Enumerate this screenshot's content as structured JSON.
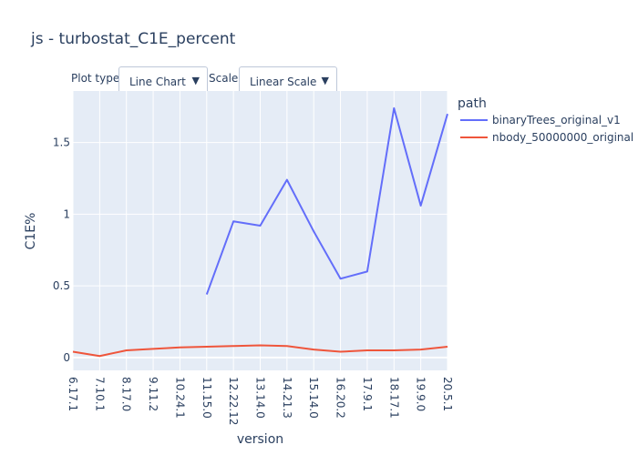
{
  "title": "js - turbostat_C1E_percent",
  "controls": {
    "plot_type_label": "Plot type:",
    "plot_type_value": "Line Chart",
    "scale_label": "Scale:",
    "scale_value": "Linear Scale",
    "arrow_glyph": "▼"
  },
  "legend": {
    "title": "path"
  },
  "colors": {
    "plot_bg": "#e5ecf6",
    "grid": "#ffffff",
    "text": "#2a3f5f"
  },
  "chart_data": {
    "type": "line",
    "title": "js - turbostat_C1E_percent",
    "xlabel": "version",
    "ylabel": "C1E%",
    "categories": [
      "6.17.1",
      "7.10.1",
      "8.17.0",
      "9.11.2",
      "10.24.1",
      "11.15.0",
      "12.22.12",
      "13.14.0",
      "14.21.3",
      "15.14.0",
      "16.20.2",
      "17.9.1",
      "18.17.1",
      "19.9.0",
      "20.5.1"
    ],
    "ylim": [
      -0.09,
      1.86
    ],
    "yticks": [
      0,
      0.5,
      1,
      1.5
    ],
    "ytick_labels": [
      "0",
      "0.5",
      "1",
      "1.5"
    ],
    "grid": true,
    "legend_position": "top-right",
    "series": [
      {
        "name": "binaryTrees_original_v1",
        "color": "#636efa",
        "values": [
          null,
          null,
          null,
          null,
          null,
          0.44,
          0.95,
          0.92,
          1.24,
          0.88,
          0.55,
          0.6,
          1.74,
          1.06,
          1.7
        ]
      },
      {
        "name": "nbody_50000000_original",
        "color": "#ef553b",
        "values": [
          0.04,
          0.01,
          0.05,
          0.06,
          0.07,
          0.075,
          0.08,
          0.085,
          0.08,
          0.055,
          0.04,
          0.05,
          0.05,
          0.055,
          0.075
        ]
      }
    ]
  }
}
